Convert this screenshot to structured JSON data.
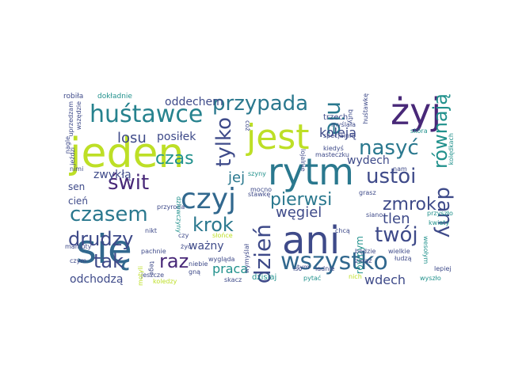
{
  "words": [
    {
      "t": "jeden",
      "c": "#bddf26"
    },
    {
      "t": "jest",
      "c": "#bddf26"
    },
    {
      "t": "rytm",
      "c": "#2a788e"
    },
    {
      "t": "żyj",
      "c": "#482878"
    },
    {
      "t": "ani",
      "c": "#3e4a89"
    },
    {
      "t": "się",
      "c": "#31688e"
    },
    {
      "t": "czyj",
      "c": "#31688e"
    },
    {
      "t": "huśtawce",
      "c": "#26828e"
    },
    {
      "t": "przypada",
      "c": "#2a788e"
    },
    {
      "t": "nie",
      "c": "#2a788e"
    },
    {
      "t": "równają",
      "c": "#21918c"
    },
    {
      "t": "tylko",
      "c": "#3e4a89"
    },
    {
      "t": "nasyć",
      "c": "#2a788e"
    },
    {
      "t": "ustoi",
      "c": "#3e4a89"
    },
    {
      "t": "czasem",
      "c": "#2a788e"
    },
    {
      "t": "świt",
      "c": "#482878"
    },
    {
      "t": "krok",
      "c": "#2a788e"
    },
    {
      "t": "dzień",
      "c": "#3e4a89"
    },
    {
      "t": "pierwsi",
      "c": "#2a788e"
    },
    {
      "t": "zmrok",
      "c": "#3e4a89"
    },
    {
      "t": "dany",
      "c": "#3e4a89"
    },
    {
      "t": "twój",
      "c": "#3e4a89"
    },
    {
      "t": "wszystko",
      "c": "#31688e"
    },
    {
      "t": "drudzy",
      "c": "#3e4a89"
    },
    {
      "t": "tak",
      "c": "#3e4a89"
    },
    {
      "t": "raz",
      "c": "#482878"
    },
    {
      "t": "czas",
      "c": "#21918c"
    },
    {
      "t": "zwykłą",
      "c": "#3e4a89"
    },
    {
      "t": "losu",
      "c": "#3e4a89"
    },
    {
      "t": "posiłek",
      "c": "#3e4a89"
    },
    {
      "t": "oddechem",
      "c": "#3e4a89"
    },
    {
      "t": "koleją",
      "c": "#3e4a89"
    },
    {
      "t": "wydech",
      "c": "#3e4a89"
    },
    {
      "t": "jej",
      "c": "#2a788e"
    },
    {
      "t": "węgiel",
      "c": "#3e4a89"
    },
    {
      "t": "tlen",
      "c": "#3e4a89"
    },
    {
      "t": "wdech",
      "c": "#3e4a89"
    },
    {
      "t": "praca",
      "c": "#21918c"
    },
    {
      "t": "ważny",
      "c": "#3e4a89"
    },
    {
      "t": "odchodzą",
      "c": "#3e4a89"
    },
    {
      "t": "cień",
      "c": "#3e4a89"
    },
    {
      "t": "sen",
      "c": "#3e4a89"
    },
    {
      "t": "równym",
      "c": "#21918c"
    },
    {
      "t": "trzech",
      "c": "#3e4a89"
    },
    {
      "t": "dzisiaj",
      "c": "#21918c"
    },
    {
      "t": "robiła",
      "c": "#3e4a89"
    },
    {
      "t": "dokładnie",
      "c": "#21918c"
    },
    {
      "t": "uprzedzam",
      "c": "#3e4a89"
    },
    {
      "t": "myślała",
      "c": "#3e4a89"
    },
    {
      "t": "specjalnie",
      "c": "#3e4a89"
    },
    {
      "t": "skóra",
      "c": "#21918c"
    },
    {
      "t": "huśtawkę",
      "c": "#3e4a89"
    },
    {
      "t": "buty",
      "c": "#3e4a89"
    },
    {
      "t": "kiedyś",
      "c": "#3e4a89"
    },
    {
      "t": "masteczku",
      "c": "#3e4a89"
    },
    {
      "t": "lojalnie",
      "c": "#3e4a89"
    },
    {
      "t": "szyny",
      "c": "#21918c"
    },
    {
      "t": "przyroda",
      "c": "#3e4a89"
    },
    {
      "t": "stawkę",
      "c": "#3e4a89"
    },
    {
      "t": "dziewczyny",
      "c": "#21918c"
    },
    {
      "t": "chcą",
      "c": "#3e4a89"
    },
    {
      "t": "grasz",
      "c": "#3e4a89"
    },
    {
      "t": "przyszło",
      "c": "#21918c"
    },
    {
      "t": "kwiaty",
      "c": "#21918c"
    },
    {
      "t": "wesołym",
      "c": "#21918c"
    },
    {
      "t": "lepiej",
      "c": "#3e4a89"
    },
    {
      "t": "wyszło",
      "c": "#21918c"
    },
    {
      "t": "łudzą",
      "c": "#3e4a89"
    },
    {
      "t": "wielkie",
      "c": "#3e4a89"
    },
    {
      "t": "nich",
      "c": "#bddf26"
    },
    {
      "t": "ładnie",
      "c": "#3e4a89"
    },
    {
      "t": "pytać",
      "c": "#21918c"
    },
    {
      "t": "skacz",
      "c": "#3e4a89"
    },
    {
      "t": "wygląda",
      "c": "#3e4a89"
    },
    {
      "t": "koledzy",
      "c": "#bddf26"
    },
    {
      "t": "czym",
      "c": "#3e4a89"
    },
    {
      "t": "mamuty",
      "c": "#3e4a89"
    },
    {
      "t": "nikt",
      "c": "#3e4a89"
    },
    {
      "t": "niebie",
      "c": "#3e4a89"
    },
    {
      "t": "żyć",
      "c": "#3e4a89"
    },
    {
      "t": "czy",
      "c": "#3e4a89"
    },
    {
      "t": "pachnie",
      "c": "#3e4a89"
    },
    {
      "t": "słońce",
      "c": "#bddf26"
    },
    {
      "t": "gną",
      "c": "#3e4a89"
    },
    {
      "t": "wymyślał",
      "c": "#3e4a89"
    },
    {
      "t": "siano",
      "c": "#3e4a89"
    },
    {
      "t": "będzie",
      "c": "#3e4a89"
    },
    {
      "t": "zaraz",
      "c": "#3e4a89"
    },
    {
      "t": "tym",
      "c": "#3e4a89"
    },
    {
      "t": "isc",
      "c": "#3e4a89"
    },
    {
      "t": "mocno",
      "c": "#3e4a89"
    },
    {
      "t": "nam",
      "c": "#3e4a89"
    },
    {
      "t": "kolędkach",
      "c": "#21918c"
    },
    {
      "t": "jeszcze",
      "c": "#3e4a89"
    },
    {
      "t": "jeździ",
      "c": "#3e4a89"
    },
    {
      "t": "nimi",
      "c": "#3e4a89"
    },
    {
      "t": "tego",
      "c": "#3e4a89"
    },
    {
      "t": "motyli",
      "c": "#bddf26"
    },
    {
      "t": "nagle",
      "c": "#3e4a89"
    },
    {
      "t": "wszędzie",
      "c": "#3e4a89"
    },
    {
      "t": "cóż",
      "c": "#3e4a89"
    }
  ]
}
